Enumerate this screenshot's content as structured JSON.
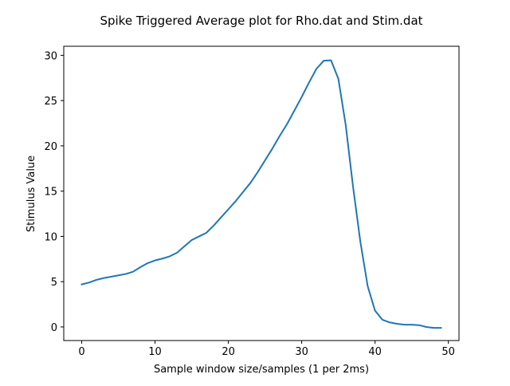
{
  "chart_data": {
    "type": "line",
    "title": "Spike Triggered Average plot for Rho.dat and Stim.dat",
    "xlabel": "Sample window size/samples (1 per 2ms)",
    "ylabel": "Stimulus Value",
    "xlim": [
      -2.45,
      51.45
    ],
    "ylim": [
      -1.5,
      31.0
    ],
    "x_ticks": [
      0,
      10,
      20,
      30,
      40,
      50
    ],
    "y_ticks": [
      0,
      5,
      10,
      15,
      20,
      25,
      30
    ],
    "grid": false,
    "line_color": "#1f77b4",
    "series": [
      {
        "x": [
          0,
          1,
          2,
          3,
          4,
          5,
          6,
          7,
          8,
          9,
          10,
          11,
          12,
          13,
          14,
          15,
          16,
          17,
          18,
          19,
          20,
          21,
          22,
          23,
          24,
          25,
          26,
          27,
          28,
          29,
          30,
          31,
          32,
          33,
          34,
          35,
          36,
          37,
          38,
          39,
          40,
          41,
          42,
          43,
          44,
          45,
          46,
          47,
          48,
          49
        ],
        "values": [
          4.7,
          4.9,
          5.2,
          5.4,
          5.55,
          5.7,
          5.85,
          6.1,
          6.6,
          7.05,
          7.35,
          7.55,
          7.8,
          8.2,
          8.9,
          9.6,
          10.0,
          10.4,
          11.2,
          12.1,
          13.0,
          13.9,
          14.9,
          15.9,
          17.1,
          18.4,
          19.7,
          21.1,
          22.4,
          23.9,
          25.4,
          27.0,
          28.5,
          29.4,
          29.45,
          27.4,
          22.3,
          15.5,
          9.4,
          4.5,
          1.8,
          0.8,
          0.5,
          0.35,
          0.25,
          0.25,
          0.2,
          0.0,
          -0.1,
          -0.1
        ]
      }
    ]
  }
}
